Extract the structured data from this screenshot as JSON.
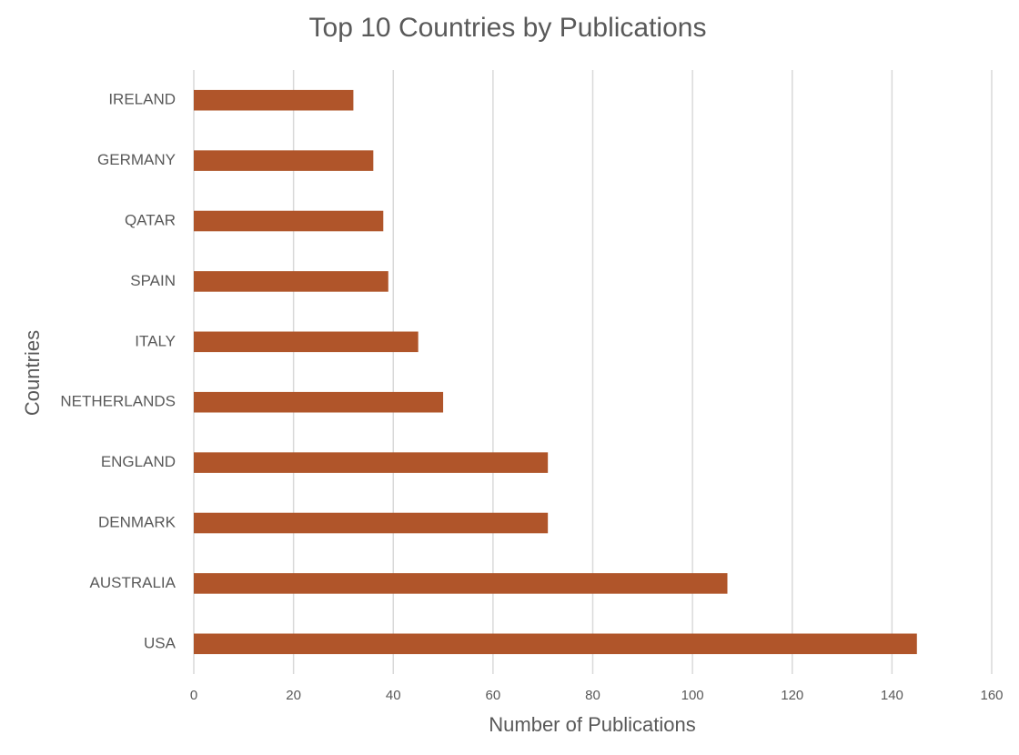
{
  "chart_data": {
    "type": "bar",
    "horizontal": true,
    "title": "Top 10 Countries by Publications",
    "x_label": "Number of Publications",
    "y_label": "Countries",
    "categories": [
      "IRELAND",
      "GERMANY",
      "QATAR",
      "SPAIN",
      "ITALY",
      "NETHERLANDS",
      "ENGLAND",
      "DENMARK",
      "AUSTRALIA",
      "USA"
    ],
    "values": [
      32,
      36,
      38,
      39,
      45,
      50,
      71,
      71,
      107,
      145
    ],
    "color": "#b0552a",
    "xlim": [
      0,
      160
    ],
    "xticks": [
      0,
      20,
      40,
      60,
      80,
      100,
      120,
      140,
      160
    ],
    "grid": true
  }
}
